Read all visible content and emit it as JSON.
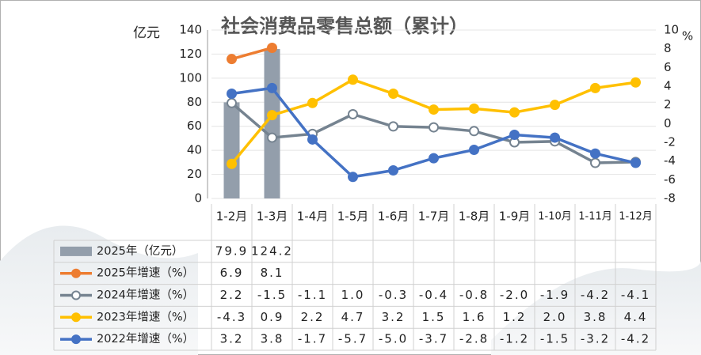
{
  "chart_data": {
    "type": "bar",
    "title": "社会消费品零售总额（累计）",
    "y_label": "亿元",
    "y2_label": "%",
    "categories": [
      "1-2月",
      "1-3月",
      "1-4月",
      "1-5月",
      "1-6月",
      "1-7月",
      "1-8月",
      "1-9月",
      "1-10月",
      "1-11月",
      "1-12月"
    ],
    "ylim": [
      0,
      140
    ],
    "yticks": [
      0,
      20,
      40,
      60,
      80,
      100,
      120,
      140
    ],
    "y2lim": [
      -8,
      10
    ],
    "y2ticks": [
      -8,
      -6,
      -4,
      -2,
      0,
      2,
      4,
      6,
      8,
      10
    ],
    "series": [
      {
        "name": "2025年（亿元）",
        "type": "bar",
        "color": "#939eab",
        "values": [
          79.9,
          124.2,
          null,
          null,
          null,
          null,
          null,
          null,
          null,
          null,
          null
        ],
        "value_labels": [
          "79.9",
          "124.2",
          null,
          null,
          null,
          null,
          null,
          null,
          null,
          null,
          null
        ]
      },
      {
        "name": "2025年增速（%）",
        "type": "line",
        "axis": "y2",
        "color": "#ed7d31",
        "marker_fill": "#ed7d31",
        "values": [
          6.9,
          8.1,
          null,
          null,
          null,
          null,
          null,
          null,
          null,
          null,
          null
        ],
        "value_labels": [
          "6.9",
          "8.1",
          null,
          null,
          null,
          null,
          null,
          null,
          null,
          null,
          null
        ]
      },
      {
        "name": "2024年增速（%）",
        "type": "line",
        "axis": "y2",
        "color": "#758390",
        "marker_fill": "#ffffff",
        "values": [
          2.2,
          -1.5,
          -1.1,
          1.0,
          -0.3,
          -0.4,
          -0.8,
          -2.0,
          -1.9,
          -4.2,
          -4.1
        ],
        "value_labels": [
          "2.2",
          "-1.5",
          "-1.1",
          "1.0",
          "-0.3",
          "-0.4",
          "-0.8",
          "-2.0",
          "-1.9",
          "-4.2",
          "-4.1"
        ]
      },
      {
        "name": "2023年增速（%）",
        "type": "line",
        "axis": "y2",
        "color": "#ffc000",
        "marker_fill": "#ffc000",
        "values": [
          -4.3,
          0.9,
          2.2,
          4.7,
          3.2,
          1.5,
          1.6,
          1.2,
          2.0,
          3.8,
          4.4
        ],
        "value_labels": [
          "-4.3",
          "0.9",
          "2.2",
          "4.7",
          "3.2",
          "1.5",
          "1.6",
          "1.2",
          "2.0",
          "3.8",
          "4.4"
        ]
      },
      {
        "name": "2022年增速（%）",
        "type": "line",
        "axis": "y2",
        "color": "#4472c4",
        "marker_fill": "#4472c4",
        "values": [
          3.2,
          3.8,
          -1.7,
          -5.7,
          -5.0,
          -3.7,
          -2.8,
          -1.2,
          -1.5,
          -3.2,
          -4.2
        ],
        "value_labels": [
          "3.2",
          "3.8",
          "-1.7",
          "-5.7",
          "-5.0",
          "-3.7",
          "-2.8",
          "-1.2",
          "-1.5",
          "-3.2",
          "-4.2"
        ]
      }
    ],
    "grid": true
  }
}
